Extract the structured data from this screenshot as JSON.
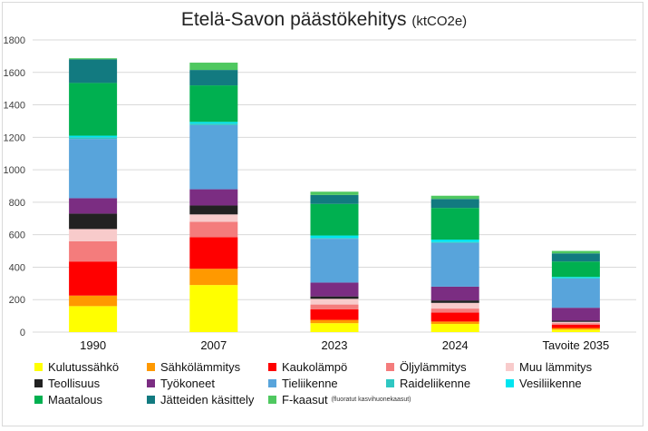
{
  "title_main": "Etelä-Savon päästökehitys",
  "title_unit": "(ktCO2e)",
  "chart_data": {
    "type": "bar",
    "stacked": true,
    "title": "Etelä-Savon päästökehitys (ktCO2e)",
    "categories": [
      "1990",
      "2007",
      "2023",
      "2024",
      "Tavoite 2035"
    ],
    "ylim": [
      0,
      1800
    ],
    "yticks": [
      "0",
      "200",
      "400",
      "600",
      "800",
      "1000",
      "1200",
      "1400",
      "1600",
      "1800"
    ],
    "grid": true,
    "legend_position": "bottom",
    "series": [
      {
        "name": "Kulutussähkö",
        "color": "#ffff00",
        "values": [
          160,
          290,
          55,
          50,
          15
        ]
      },
      {
        "name": "Sähkölämmitys",
        "color": "#ff9900",
        "values": [
          65,
          100,
          20,
          15,
          10
        ]
      },
      {
        "name": "Kaukolämpö",
        "color": "#ff0000",
        "values": [
          210,
          195,
          65,
          55,
          20
        ]
      },
      {
        "name": "Öljylämmitys",
        "color": "#f47c7c",
        "values": [
          125,
          95,
          30,
          25,
          10
        ]
      },
      {
        "name": "Muu lämmitys",
        "color": "#f8cbcb",
        "values": [
          75,
          45,
          35,
          35,
          8
        ]
      },
      {
        "name": "Teollisuus",
        "color": "#222222",
        "values": [
          95,
          55,
          15,
          15,
          7
        ]
      },
      {
        "name": "Työkoneet",
        "color": "#7b2d82",
        "values": [
          95,
          100,
          85,
          85,
          80
        ]
      },
      {
        "name": "Tieliikenne",
        "color": "#58a4db",
        "values": [
          365,
          395,
          270,
          270,
          180
        ]
      },
      {
        "name": "Raideliikenne",
        "color": "#2fc7c2",
        "values": [
          10,
          10,
          5,
          5,
          3
        ]
      },
      {
        "name": "Vesiliikenne",
        "color": "#00e5f0",
        "values": [
          10,
          10,
          15,
          15,
          7
        ]
      },
      {
        "name": "Maatalous",
        "color": "#00b050",
        "values": [
          325,
          225,
          195,
          195,
          95
        ]
      },
      {
        "name": "Jätteiden käsittely",
        "color": "#127a80",
        "values": [
          145,
          95,
          55,
          55,
          50
        ]
      },
      {
        "name": "F-kaasut",
        "color": "#4fc860",
        "values": [
          7,
          45,
          20,
          20,
          15
        ]
      }
    ]
  },
  "legend_note": "(fluoratut kasvihuonekaasut)"
}
